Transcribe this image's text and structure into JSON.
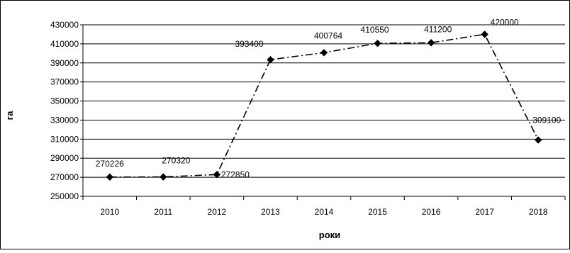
{
  "chart_data": {
    "type": "line",
    "title": "",
    "xlabel": "роки",
    "ylabel": "га",
    "categories": [
      "2010",
      "2011",
      "2012",
      "2013",
      "2014",
      "2015",
      "2016",
      "2017",
      "2018"
    ],
    "series": [
      {
        "values": [
          270226,
          270320,
          272850,
          393400,
          400764,
          410550,
          411200,
          420000,
          309100
        ],
        "data_labels": [
          "270226",
          "270320",
          "272850",
          "393400",
          "400764",
          "410550",
          "411200",
          "420000",
          "309100"
        ],
        "color": "#000000",
        "line_style": "dash-dot",
        "marker": "diamond"
      }
    ],
    "ylim": [
      250000,
      430000
    ],
    "y_ticks": [
      250000,
      270000,
      290000,
      310000,
      330000,
      350000,
      370000,
      390000,
      410000,
      430000
    ],
    "y_tick_labels": [
      "250000",
      "270000",
      "290000",
      "310000",
      "330000",
      "350000",
      "370000",
      "390000",
      "410000",
      "430000"
    ],
    "grid": true,
    "legend": "none"
  }
}
